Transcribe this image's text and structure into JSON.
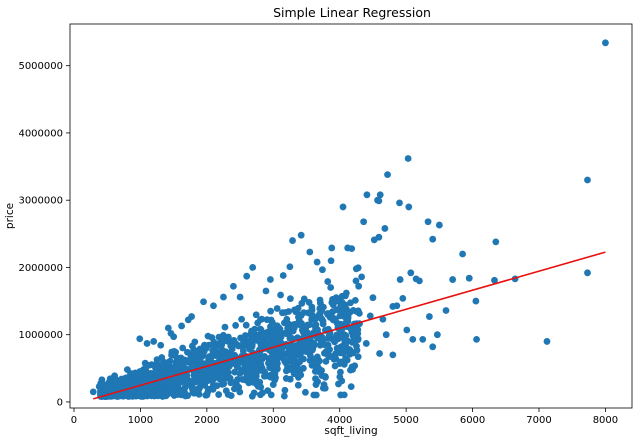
{
  "chart_data": {
    "type": "scatter",
    "title": "Simple Linear Regression",
    "xlabel": "sqft_living",
    "ylabel": "price",
    "xlim": [
      -60,
      8400
    ],
    "ylim": [
      -90000,
      5620000
    ],
    "xticks": [
      0,
      1000,
      2000,
      3000,
      4000,
      5000,
      6000,
      7000,
      8000
    ],
    "yticks": [
      0,
      1000000,
      2000000,
      3000000,
      4000000,
      5000000
    ],
    "grid": false,
    "colors": {
      "points": "#1f77b4",
      "regression_line": "#e8110f"
    },
    "regression_line": {
      "x": [
        290,
        8000
      ],
      "y": [
        46000,
        2228000
      ]
    },
    "cluster": {
      "description_points_generated": "dense band around regression line",
      "x_range": [
        400,
        4300
      ],
      "count": 1400
    },
    "points": [
      [
        290,
        150000
      ],
      [
        380,
        230000
      ],
      [
        420,
        330000
      ],
      [
        520,
        240000
      ],
      [
        8000,
        5340000
      ],
      [
        7730,
        3300000
      ],
      [
        7730,
        1920000
      ],
      [
        7120,
        900000
      ],
      [
        6640,
        1830000
      ],
      [
        6350,
        2380000
      ],
      [
        6330,
        1810000
      ],
      [
        6060,
        930000
      ],
      [
        6050,
        1500000
      ],
      [
        5950,
        1840000
      ],
      [
        5850,
        2200000
      ],
      [
        5700,
        1820000
      ],
      [
        5500,
        2630000
      ],
      [
        5400,
        2420000
      ],
      [
        5470,
        1000000
      ],
      [
        5330,
        2680000
      ],
      [
        5250,
        930000
      ],
      [
        5200,
        1800000
      ],
      [
        5030,
        3620000
      ],
      [
        5040,
        2900000
      ],
      [
        5070,
        1920000
      ],
      [
        5100,
        930000
      ],
      [
        5010,
        1070000
      ],
      [
        4900,
        2960000
      ],
      [
        4800,
        1420000
      ],
      [
        4860,
        1430000
      ],
      [
        4910,
        1820000
      ],
      [
        4720,
        3380000
      ],
      [
        4610,
        3080000
      ],
      [
        4590,
        2990000
      ],
      [
        4590,
        2450000
      ],
      [
        4520,
        2410000
      ],
      [
        4570,
        3000000
      ],
      [
        4410,
        3080000
      ],
      [
        4360,
        2680000
      ],
      [
        4180,
        2280000
      ],
      [
        4120,
        2290000
      ],
      [
        4050,
        2900000
      ],
      [
        4250,
        1980000
      ],
      [
        4330,
        1860000
      ],
      [
        3880,
        2290000
      ],
      [
        3870,
        2100000
      ],
      [
        3820,
        1790000
      ],
      [
        3660,
        2080000
      ],
      [
        3550,
        2230000
      ],
      [
        3420,
        2480000
      ],
      [
        3290,
        2400000
      ],
      [
        3250,
        2010000
      ],
      [
        3150,
        1880000
      ],
      [
        3110,
        1590000
      ],
      [
        2960,
        1350000
      ],
      [
        2890,
        1650000
      ],
      [
        2690,
        2000000
      ],
      [
        2600,
        1870000
      ],
      [
        2500,
        1560000
      ],
      [
        2400,
        1720000
      ],
      [
        2250,
        1560000
      ],
      [
        2100,
        1430000
      ],
      [
        1950,
        1490000
      ],
      [
        1770,
        1270000
      ],
      [
        1720,
        1220000
      ],
      [
        1620,
        1130000
      ],
      [
        1500,
        970000
      ],
      [
        1460,
        1020000
      ],
      [
        1420,
        1100000
      ],
      [
        1200,
        900000
      ],
      [
        1100,
        870000
      ],
      [
        990,
        940000
      ],
      [
        4680,
        2580000
      ],
      [
        5150,
        1830000
      ],
      [
        5600,
        1360000
      ],
      [
        4650,
        1230000
      ],
      [
        4950,
        1540000
      ],
      [
        5350,
        1270000
      ],
      [
        4700,
        1000000
      ],
      [
        4200,
        980000
      ],
      [
        3750,
        890000
      ],
      [
        4260,
        1120000
      ],
      [
        4460,
        1280000
      ],
      [
        4500,
        1550000
      ],
      [
        3950,
        1500000
      ],
      [
        3700,
        1390000
      ],
      [
        4100,
        1620000
      ],
      [
        4150,
        780000
      ],
      [
        3350,
        690000
      ],
      [
        3900,
        1250000
      ],
      [
        4000,
        1120000
      ],
      [
        4050,
        1370000
      ],
      [
        4400,
        870000
      ],
      [
        4600,
        720000
      ],
      [
        4800,
        700000
      ],
      [
        5400,
        820000
      ]
    ]
  }
}
